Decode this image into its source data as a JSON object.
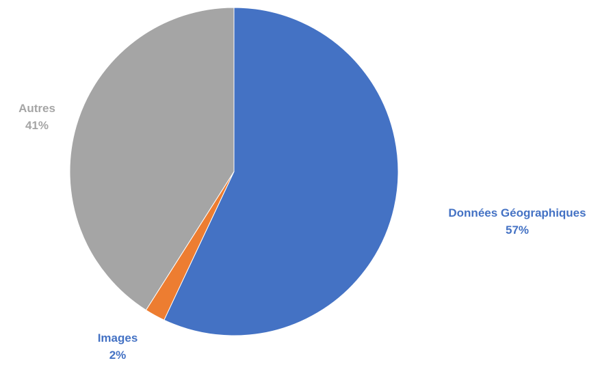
{
  "chart_data": {
    "type": "pie",
    "title": "",
    "slices": [
      {
        "label": "Données Géographiques",
        "value": 57,
        "value_label": "57%",
        "color": "#4472C4",
        "label_color": "#4472C4"
      },
      {
        "label": "Images",
        "value": 2,
        "value_label": "2%",
        "color": "#ED7D31",
        "label_color": "#4472C4"
      },
      {
        "label": "Autres",
        "value": 41,
        "value_label": "41%",
        "color": "#A5A5A5",
        "label_color": "#A5A5A5"
      }
    ],
    "start": "top",
    "direction": "clockwise",
    "legend": "none",
    "data_labels": "outside"
  }
}
